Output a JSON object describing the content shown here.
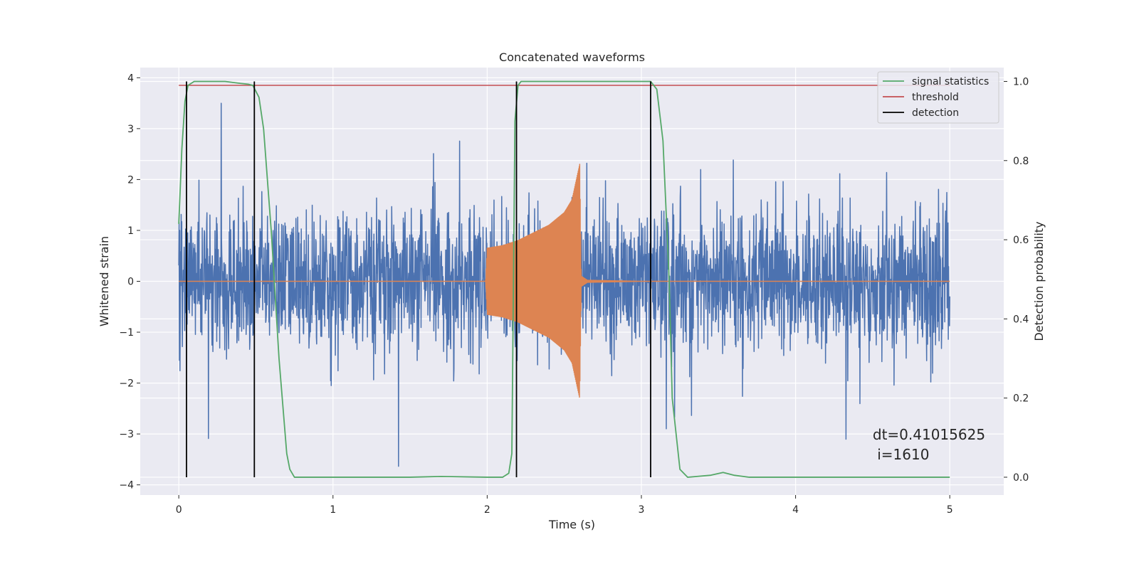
{
  "chart_data": {
    "type": "line",
    "title": "Concatenated waveforms",
    "xlabel": "Time (s)",
    "ylabel": "Whitened strain",
    "ylabel_right": "Detection probability",
    "xlim": [
      -0.25,
      5.35
    ],
    "ylim": [
      -4.2,
      4.2
    ],
    "ylim_right": [
      -0.045,
      1.035
    ],
    "xticks": [
      0,
      1,
      2,
      3,
      4,
      5
    ],
    "yticks": [
      -4,
      -3,
      -2,
      -1,
      0,
      1,
      2,
      3,
      4
    ],
    "yticks_right": [
      0.0,
      0.2,
      0.4,
      0.6,
      0.8,
      1.0
    ],
    "tick_labels_right": [
      "0.0",
      "0.2",
      "0.4",
      "0.6",
      "0.8",
      "1.0"
    ],
    "grid": true,
    "legend_position": "upper right",
    "colors": {
      "strain": "#4c72b0",
      "template": "#dd8452",
      "statistics": "#55a868",
      "threshold": "#c44e52",
      "detection": "#000000",
      "background": "#eaeaf2",
      "grid": "#ffffff"
    },
    "series": [
      {
        "name": "",
        "role": "whitened-strain-noise",
        "x_range": [
          0,
          5
        ],
        "typical_amplitude": 0.7,
        "peak_max": 3.5,
        "peak_min": -3.75
      },
      {
        "name": "",
        "role": "injected-chirp",
        "x": [
          0.0,
          1.99,
          2.0,
          2.1,
          2.2,
          2.3,
          2.4,
          2.5,
          2.55,
          2.6,
          2.61,
          2.65,
          3.0,
          5.0
        ],
        "envelope": [
          0.0,
          0.0,
          0.65,
          0.7,
          0.8,
          0.95,
          1.1,
          1.35,
          1.6,
          2.3,
          0.1,
          0.02,
          0.0,
          0.0
        ]
      },
      {
        "name": "signal statistics",
        "axis": "right",
        "x": [
          0.0,
          0.02,
          0.04,
          0.06,
          0.1,
          0.2,
          0.3,
          0.4,
          0.45,
          0.48,
          0.52,
          0.55,
          0.6,
          0.65,
          0.7,
          0.72,
          0.75,
          1.0,
          1.5,
          1.7,
          2.0,
          2.1,
          2.14,
          2.16,
          2.18,
          2.2,
          2.22,
          2.3,
          2.5,
          2.8,
          3.0,
          3.06,
          3.1,
          3.14,
          3.18,
          3.2,
          3.25,
          3.3,
          3.45,
          3.53,
          3.6,
          3.7,
          4.0,
          5.0
        ],
        "y": [
          0.64,
          0.83,
          0.95,
          0.99,
          1.0,
          1.0,
          1.0,
          0.995,
          0.993,
          0.99,
          0.96,
          0.88,
          0.62,
          0.3,
          0.06,
          0.02,
          0.0,
          0.0,
          0.0,
          0.002,
          0.0,
          0.0,
          0.01,
          0.06,
          0.9,
          0.99,
          1.0,
          1.0,
          1.0,
          1.0,
          1.0,
          1.0,
          0.98,
          0.85,
          0.5,
          0.2,
          0.02,
          0.0,
          0.005,
          0.012,
          0.005,
          0.0,
          0.0,
          0.0
        ]
      },
      {
        "name": "threshold",
        "axis": "right",
        "x": [
          0.0,
          5.0
        ],
        "y": [
          0.99,
          0.99
        ]
      },
      {
        "name": "detection",
        "axis": "right",
        "type": "vlines",
        "x": [
          0.05,
          0.49,
          2.19,
          3.06
        ],
        "ymin": 0.0,
        "ymax": 1.0
      }
    ],
    "annotation": "dt=0.41015625\n i=1610",
    "annotation_lines": [
      "dt=0.41015625",
      " i=1610"
    ],
    "annotation_position": {
      "x": 4.5,
      "y": -3.0
    }
  }
}
